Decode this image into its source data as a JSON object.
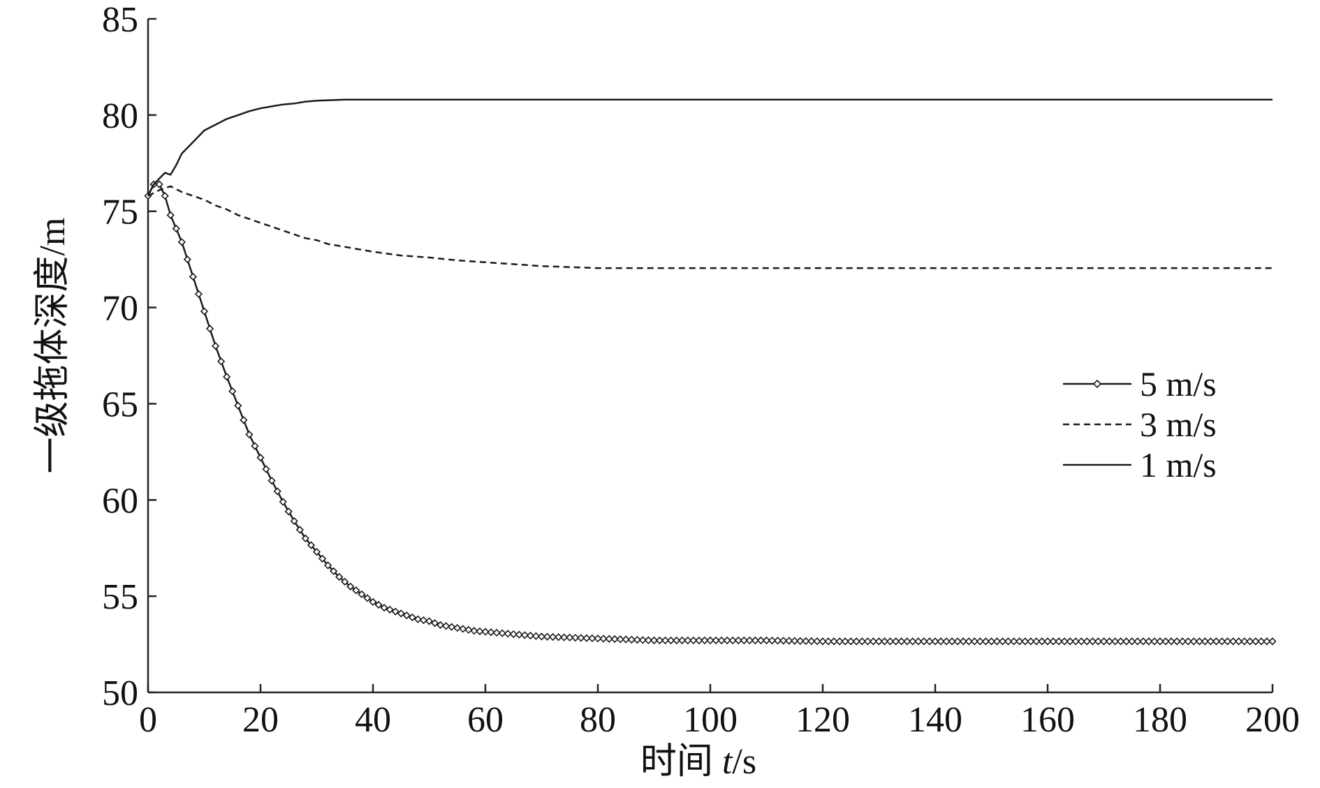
{
  "chart_data": {
    "type": "line",
    "title": "",
    "xlabel": "时间 t/s",
    "xlabel_prefix": "时间 ",
    "xlabel_var": "t",
    "xlabel_unit": "/s",
    "ylabel": "一级拖体深度/m",
    "xlim": [
      0,
      200
    ],
    "ylim": [
      50,
      85
    ],
    "x_ticks": [
      0,
      20,
      40,
      60,
      80,
      100,
      120,
      140,
      160,
      180,
      200
    ],
    "y_ticks": [
      50,
      55,
      60,
      65,
      70,
      75,
      80,
      85
    ],
    "grid": false,
    "legend_position": "right-middle",
    "series": [
      {
        "name": "5 m/s",
        "style": "solid-diamond",
        "color": "#1a1a1a",
        "points": [
          [
            0,
            75.8
          ],
          [
            1,
            76.4
          ],
          [
            2,
            76.4
          ],
          [
            3,
            75.8
          ],
          [
            4,
            74.8
          ],
          [
            6,
            73.4
          ],
          [
            8,
            71.6
          ],
          [
            10,
            69.8
          ],
          [
            12,
            68.0
          ],
          [
            14,
            66.4
          ],
          [
            16,
            64.9
          ],
          [
            18,
            63.4
          ],
          [
            20,
            62.2
          ],
          [
            22,
            61.0
          ],
          [
            24,
            59.9
          ],
          [
            26,
            58.9
          ],
          [
            28,
            58.0
          ],
          [
            30,
            57.3
          ],
          [
            32,
            56.6
          ],
          [
            34,
            56.0
          ],
          [
            36,
            55.5
          ],
          [
            38,
            55.1
          ],
          [
            40,
            54.7
          ],
          [
            42,
            54.4
          ],
          [
            44,
            54.2
          ],
          [
            46,
            54.0
          ],
          [
            48,
            53.8
          ],
          [
            50,
            53.7
          ],
          [
            52,
            53.5
          ],
          [
            54,
            53.4
          ],
          [
            56,
            53.3
          ],
          [
            58,
            53.2
          ],
          [
            60,
            53.15
          ],
          [
            62,
            53.1
          ],
          [
            64,
            53.05
          ],
          [
            66,
            53.0
          ],
          [
            68,
            52.95
          ],
          [
            70,
            52.9
          ],
          [
            75,
            52.85
          ],
          [
            80,
            52.8
          ],
          [
            85,
            52.75
          ],
          [
            90,
            52.7
          ],
          [
            100,
            52.7
          ],
          [
            110,
            52.7
          ],
          [
            120,
            52.65
          ],
          [
            130,
            52.65
          ],
          [
            140,
            52.65
          ],
          [
            150,
            52.65
          ],
          [
            160,
            52.65
          ],
          [
            170,
            52.65
          ],
          [
            180,
            52.65
          ],
          [
            190,
            52.65
          ],
          [
            200,
            52.65
          ]
        ]
      },
      {
        "name": "3 m/s",
        "style": "dashed",
        "color": "#1a1a1a",
        "points": [
          [
            0,
            75.8
          ],
          [
            2,
            76.1
          ],
          [
            4,
            76.3
          ],
          [
            6,
            76.0
          ],
          [
            8,
            75.8
          ],
          [
            10,
            75.6
          ],
          [
            12,
            75.3
          ],
          [
            14,
            75.1
          ],
          [
            16,
            74.8
          ],
          [
            18,
            74.6
          ],
          [
            20,
            74.4
          ],
          [
            22,
            74.2
          ],
          [
            24,
            74.0
          ],
          [
            26,
            73.8
          ],
          [
            28,
            73.6
          ],
          [
            30,
            73.5
          ],
          [
            32,
            73.3
          ],
          [
            35,
            73.15
          ],
          [
            38,
            73.0
          ],
          [
            40,
            72.9
          ],
          [
            45,
            72.7
          ],
          [
            50,
            72.6
          ],
          [
            55,
            72.45
          ],
          [
            60,
            72.35
          ],
          [
            65,
            72.25
          ],
          [
            70,
            72.15
          ],
          [
            75,
            72.1
          ],
          [
            80,
            72.05
          ],
          [
            90,
            72.05
          ],
          [
            100,
            72.05
          ],
          [
            120,
            72.05
          ],
          [
            140,
            72.05
          ],
          [
            160,
            72.05
          ],
          [
            180,
            72.05
          ],
          [
            200,
            72.05
          ]
        ]
      },
      {
        "name": "1 m/s",
        "style": "solid",
        "color": "#1a1a1a",
        "points": [
          [
            0,
            75.8
          ],
          [
            1,
            76.4
          ],
          [
            2,
            76.7
          ],
          [
            3,
            77.0
          ],
          [
            4,
            76.9
          ],
          [
            5,
            77.4
          ],
          [
            6,
            78.0
          ],
          [
            7,
            78.3
          ],
          [
            8,
            78.6
          ],
          [
            9,
            78.9
          ],
          [
            10,
            79.2
          ],
          [
            12,
            79.5
          ],
          [
            14,
            79.8
          ],
          [
            16,
            80.0
          ],
          [
            18,
            80.2
          ],
          [
            20,
            80.35
          ],
          [
            22,
            80.45
          ],
          [
            24,
            80.55
          ],
          [
            26,
            80.6
          ],
          [
            28,
            80.7
          ],
          [
            30,
            80.75
          ],
          [
            35,
            80.8
          ],
          [
            40,
            80.8
          ],
          [
            60,
            80.8
          ],
          [
            80,
            80.8
          ],
          [
            100,
            80.8
          ],
          [
            120,
            80.8
          ],
          [
            140,
            80.8
          ],
          [
            160,
            80.8
          ],
          [
            180,
            80.8
          ],
          [
            200,
            80.8
          ]
        ]
      }
    ]
  }
}
